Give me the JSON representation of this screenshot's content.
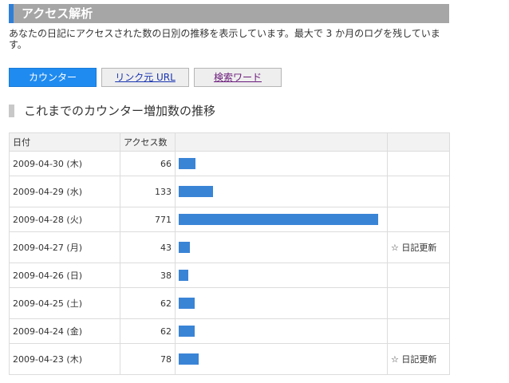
{
  "header": {
    "title": "アクセス解析"
  },
  "description": "あなたの日記にアクセスされた数の日別の推移を表示しています。最大で 3 か月のログを残しています。",
  "tabs": [
    {
      "label": "カウンター",
      "active": true
    },
    {
      "label": "リンク元 URL",
      "active": false
    },
    {
      "label": "検索ワード",
      "active": false
    }
  ],
  "section_title": "これまでのカウンター増加数の推移",
  "table": {
    "headers": {
      "date": "日付",
      "count": "アクセス数"
    },
    "max_count": 771,
    "rows": [
      {
        "date": "2009-04-30 (木)",
        "count": 66,
        "note": ""
      },
      {
        "date": "2009-04-29 (水)",
        "count": 133,
        "note": ""
      },
      {
        "date": "2009-04-28 (火)",
        "count": 771,
        "note": ""
      },
      {
        "date": "2009-04-27 (月)",
        "count": 43,
        "note": "☆ 日記更新"
      },
      {
        "date": "2009-04-26 (日)",
        "count": 38,
        "note": ""
      },
      {
        "date": "2009-04-25 (土)",
        "count": 62,
        "note": ""
      },
      {
        "date": "2009-04-24 (金)",
        "count": 62,
        "note": ""
      },
      {
        "date": "2009-04-23 (木)",
        "count": 78,
        "note": "☆ 日記更新"
      }
    ]
  },
  "colors": {
    "accent": "#2f7fd8",
    "bar": "#3a84d6",
    "active_tab": "#1f8bf0",
    "header_bg": "#a6a6a6"
  }
}
